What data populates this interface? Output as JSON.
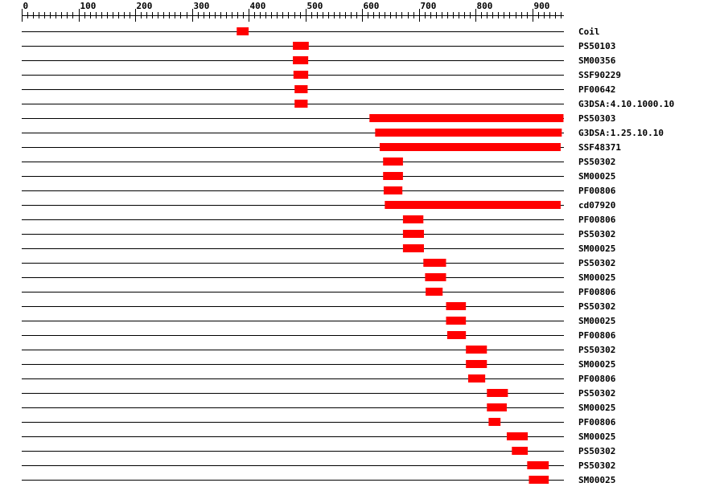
{
  "chart_data": {
    "type": "range",
    "categories": [
      "Coil",
      "PS50103",
      "SM00356",
      "SSF90229",
      "PF00642",
      "G3DSA:4.10.1000.10",
      "PS50303",
      "G3DSA:1.25.10.10",
      "SSF48371",
      "PS50302",
      "SM00025",
      "PF00806",
      "cd07920",
      "PF00806",
      "PS50302",
      "SM00025",
      "PS50302",
      "SM00025",
      "PF00806",
      "PS50302",
      "SM00025",
      "PF00806",
      "PS50302",
      "SM00025",
      "PF00806",
      "PS50302",
      "SM00025",
      "PF00806",
      "SM00025",
      "PS50302",
      "PS50302",
      "SM00025"
    ],
    "starts": [
      379,
      478,
      478,
      479,
      481,
      481,
      613,
      623,
      631,
      637,
      637,
      638,
      640,
      672,
      672,
      672,
      708,
      711,
      712,
      748,
      748,
      750,
      783,
      783,
      787,
      820,
      820,
      823,
      855,
      864,
      891,
      894
    ],
    "ends": [
      400,
      506,
      505,
      505,
      504,
      504,
      955,
      952,
      950,
      672,
      672,
      671,
      950,
      708,
      709,
      709,
      748,
      748,
      742,
      783,
      783,
      783,
      820,
      820,
      817,
      857,
      855,
      844,
      892,
      892,
      929,
      929
    ],
    "color": "#ff0000",
    "xlim": [
      0,
      960
    ],
    "xticks": [
      0,
      100,
      200,
      300,
      400,
      500,
      600,
      700,
      800,
      900
    ],
    "xminorticks": [
      10,
      20,
      30,
      40,
      50,
      60,
      70,
      80,
      90,
      110,
      120,
      130,
      140,
      150,
      160,
      170,
      180,
      190,
      210,
      220,
      230,
      240,
      250,
      260,
      270,
      280,
      290,
      310,
      320,
      330,
      340,
      350,
      360,
      370,
      380,
      390,
      410,
      420,
      430,
      440,
      450,
      460,
      470,
      480,
      490,
      510,
      520,
      530,
      540,
      550,
      560,
      570,
      580,
      590,
      610,
      620,
      630,
      640,
      650,
      660,
      670,
      680,
      690,
      710,
      720,
      730,
      740,
      750,
      760,
      770,
      780,
      790,
      810,
      820,
      830,
      840,
      850,
      860,
      870,
      880,
      890,
      910,
      920,
      930,
      940,
      950
    ]
  }
}
